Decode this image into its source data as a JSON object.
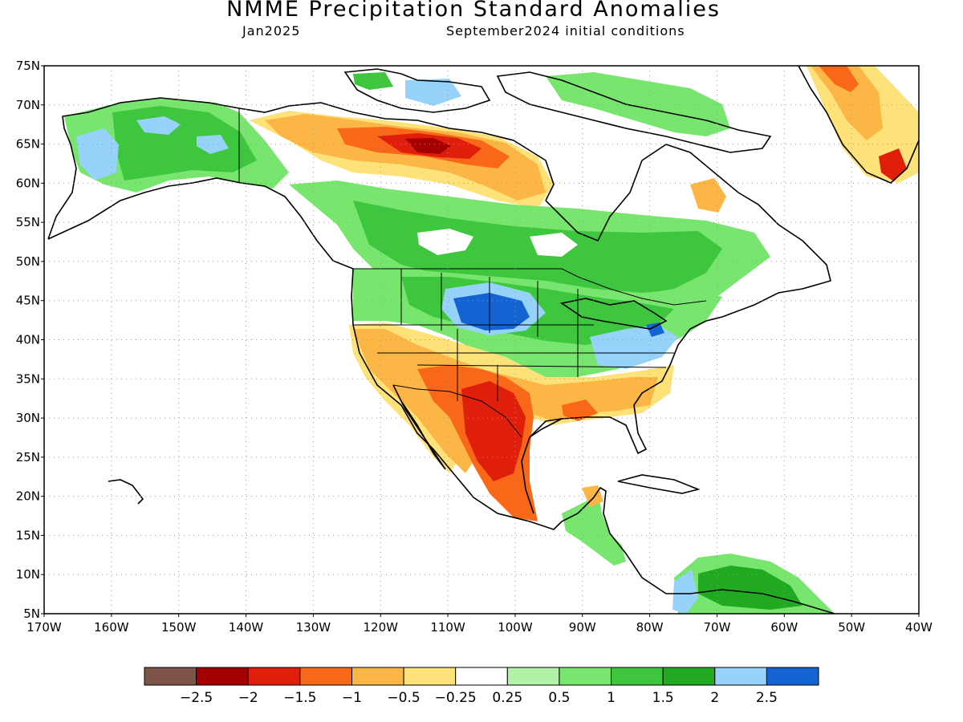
{
  "title": "NMME Precipitation Standard Anomalies",
  "subtitle_left": "Jan2025",
  "subtitle_right": "September2024 initial conditions",
  "map": {
    "lon_range": [
      -170,
      -40
    ],
    "lat_range": [
      5,
      75
    ],
    "lat_labels": [
      "75N",
      "70N",
      "65N",
      "60N",
      "55N",
      "50N",
      "45N",
      "40N",
      "35N",
      "30N",
      "25N",
      "20N",
      "15N",
      "10N",
      "5N"
    ],
    "lon_labels": [
      "170W",
      "160W",
      "150W",
      "140W",
      "130W",
      "120W",
      "110W",
      "100W",
      "90W",
      "80W",
      "70W",
      "60W",
      "50W",
      "40W"
    ],
    "grid": "dotted"
  },
  "colorbar": {
    "colors": [
      "#7f5448",
      "#a50000",
      "#e01e0c",
      "#f86818",
      "#fbb646",
      "#fde27a",
      "#ffffff",
      "#b2f2a6",
      "#78e66e",
      "#3ec73e",
      "#22a922",
      "#96d2fa",
      "#1463d2"
    ],
    "labels": [
      "-2.5",
      "-2",
      "-1.5",
      "-1",
      "-0.5",
      "-0.25",
      "0.25",
      "0.5",
      "1",
      "1.5",
      "2",
      "2.5"
    ]
  },
  "colors": {
    "coast": "#000000",
    "background": "#ffffff"
  }
}
